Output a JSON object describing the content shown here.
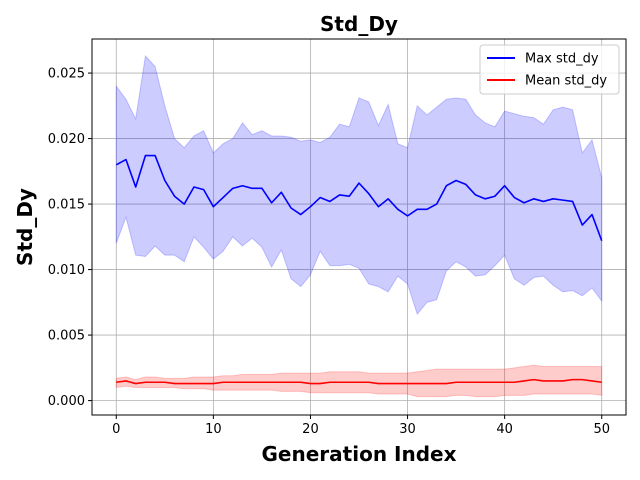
{
  "chart_data": {
    "type": "line",
    "title": "Std_Dy",
    "xlabel": "Generation Index",
    "ylabel": "Std_Dy",
    "xlim": [
      -2.5,
      52.5
    ],
    "ylim": [
      -0.0011,
      0.0276
    ],
    "x_ticks": [
      0,
      10,
      20,
      30,
      40,
      50
    ],
    "y_ticks": [
      0.0,
      0.005,
      0.01,
      0.015,
      0.02,
      0.025
    ],
    "x_tick_labels": [
      "0",
      "10",
      "20",
      "30",
      "40",
      "50"
    ],
    "y_tick_labels": [
      "0.000",
      "0.005",
      "0.010",
      "0.015",
      "0.020",
      "0.025"
    ],
    "grid": true,
    "legend_position": "top-right",
    "x": [
      0,
      1,
      2,
      3,
      4,
      5,
      6,
      7,
      8,
      9,
      10,
      11,
      12,
      13,
      14,
      15,
      16,
      17,
      18,
      19,
      20,
      21,
      22,
      23,
      24,
      25,
      26,
      27,
      28,
      29,
      30,
      31,
      32,
      33,
      34,
      35,
      36,
      37,
      38,
      39,
      40,
      41,
      42,
      43,
      44,
      45,
      46,
      47,
      48,
      49,
      50
    ],
    "series": [
      {
        "name": "Max std_dy",
        "color": "#0000ff",
        "band_color": "#0000ff",
        "values": [
          0.018,
          0.0184,
          0.0163,
          0.0187,
          0.0187,
          0.0168,
          0.0156,
          0.015,
          0.0163,
          0.0161,
          0.0148,
          0.0155,
          0.0162,
          0.0164,
          0.0162,
          0.0162,
          0.0151,
          0.0159,
          0.0147,
          0.0142,
          0.0148,
          0.0155,
          0.0152,
          0.0157,
          0.0156,
          0.0166,
          0.0158,
          0.0148,
          0.0154,
          0.0146,
          0.0141,
          0.0146,
          0.0146,
          0.015,
          0.0164,
          0.0168,
          0.0165,
          0.0157,
          0.0154,
          0.0156,
          0.0164,
          0.0155,
          0.0151,
          0.0154,
          0.0152,
          0.0154,
          0.0153,
          0.0152,
          0.0134,
          0.0142,
          0.0122
        ],
        "upper": [
          0.024,
          0.023,
          0.0215,
          0.0263,
          0.0255,
          0.0225,
          0.02,
          0.0193,
          0.0202,
          0.0206,
          0.0189,
          0.0196,
          0.02,
          0.0212,
          0.0203,
          0.0206,
          0.0202,
          0.0202,
          0.0201,
          0.0198,
          0.0199,
          0.0197,
          0.0201,
          0.0211,
          0.0209,
          0.0231,
          0.0228,
          0.021,
          0.0226,
          0.0196,
          0.0193,
          0.0225,
          0.0218,
          0.0224,
          0.023,
          0.0231,
          0.023,
          0.0218,
          0.0212,
          0.0209,
          0.0221,
          0.0219,
          0.0217,
          0.0216,
          0.0211,
          0.0222,
          0.0224,
          0.0222,
          0.0189,
          0.0199,
          0.017
        ],
        "lower": [
          0.012,
          0.014,
          0.0111,
          0.011,
          0.0118,
          0.0111,
          0.0111,
          0.0106,
          0.0125,
          0.0117,
          0.0108,
          0.0114,
          0.0125,
          0.0118,
          0.0124,
          0.0117,
          0.0102,
          0.0115,
          0.0093,
          0.0087,
          0.0096,
          0.0114,
          0.0103,
          0.0103,
          0.0104,
          0.0101,
          0.0089,
          0.0087,
          0.0083,
          0.0095,
          0.0089,
          0.0066,
          0.0075,
          0.0077,
          0.0099,
          0.0106,
          0.0102,
          0.0095,
          0.0096,
          0.0103,
          0.0111,
          0.0093,
          0.0088,
          0.0094,
          0.0095,
          0.0088,
          0.0083,
          0.0084,
          0.008,
          0.0086,
          0.0076
        ]
      },
      {
        "name": "Mean std_dy",
        "color": "#ff0000",
        "band_color": "#ff0000",
        "values": [
          0.0014,
          0.0015,
          0.0013,
          0.0014,
          0.0014,
          0.0014,
          0.0013,
          0.0013,
          0.0013,
          0.0013,
          0.0013,
          0.0014,
          0.0014,
          0.0014,
          0.0014,
          0.0014,
          0.0014,
          0.0014,
          0.0014,
          0.0014,
          0.0013,
          0.0013,
          0.0014,
          0.0014,
          0.0014,
          0.0014,
          0.0014,
          0.0013,
          0.0013,
          0.0013,
          0.0013,
          0.0013,
          0.0013,
          0.0013,
          0.0013,
          0.0014,
          0.0014,
          0.0014,
          0.0014,
          0.0014,
          0.0014,
          0.0014,
          0.0015,
          0.0016,
          0.0015,
          0.0015,
          0.0015,
          0.0016,
          0.0016,
          0.0015,
          0.0014
        ],
        "upper": [
          0.0017,
          0.0018,
          0.0016,
          0.0018,
          0.0018,
          0.0017,
          0.0017,
          0.0017,
          0.0018,
          0.0018,
          0.0018,
          0.0019,
          0.0019,
          0.002,
          0.002,
          0.002,
          0.002,
          0.0021,
          0.0021,
          0.0021,
          0.0021,
          0.0021,
          0.0022,
          0.0022,
          0.0022,
          0.0022,
          0.0021,
          0.0021,
          0.0021,
          0.0021,
          0.0021,
          0.0022,
          0.0023,
          0.0024,
          0.0024,
          0.0024,
          0.0024,
          0.0024,
          0.0024,
          0.0024,
          0.0024,
          0.0025,
          0.0026,
          0.0027,
          0.0026,
          0.0026,
          0.0026,
          0.0026,
          0.0026,
          0.0026,
          0.0026
        ],
        "lower": [
          0.001,
          0.0011,
          0.001,
          0.001,
          0.001,
          0.001,
          0.001,
          0.0009,
          0.0009,
          0.0009,
          0.0008,
          0.0008,
          0.0008,
          0.0008,
          0.0008,
          0.0008,
          0.0008,
          0.0007,
          0.0007,
          0.0007,
          0.0006,
          0.0006,
          0.0006,
          0.0006,
          0.0006,
          0.0006,
          0.0006,
          0.0005,
          0.0005,
          0.0005,
          0.0005,
          0.0003,
          0.0003,
          0.0003,
          0.0003,
          0.0004,
          0.0004,
          0.0003,
          0.0003,
          0.0003,
          0.0004,
          0.0004,
          0.0004,
          0.0005,
          0.0005,
          0.0005,
          0.0005,
          0.0005,
          0.0005,
          0.0005,
          0.0004
        ]
      }
    ]
  }
}
